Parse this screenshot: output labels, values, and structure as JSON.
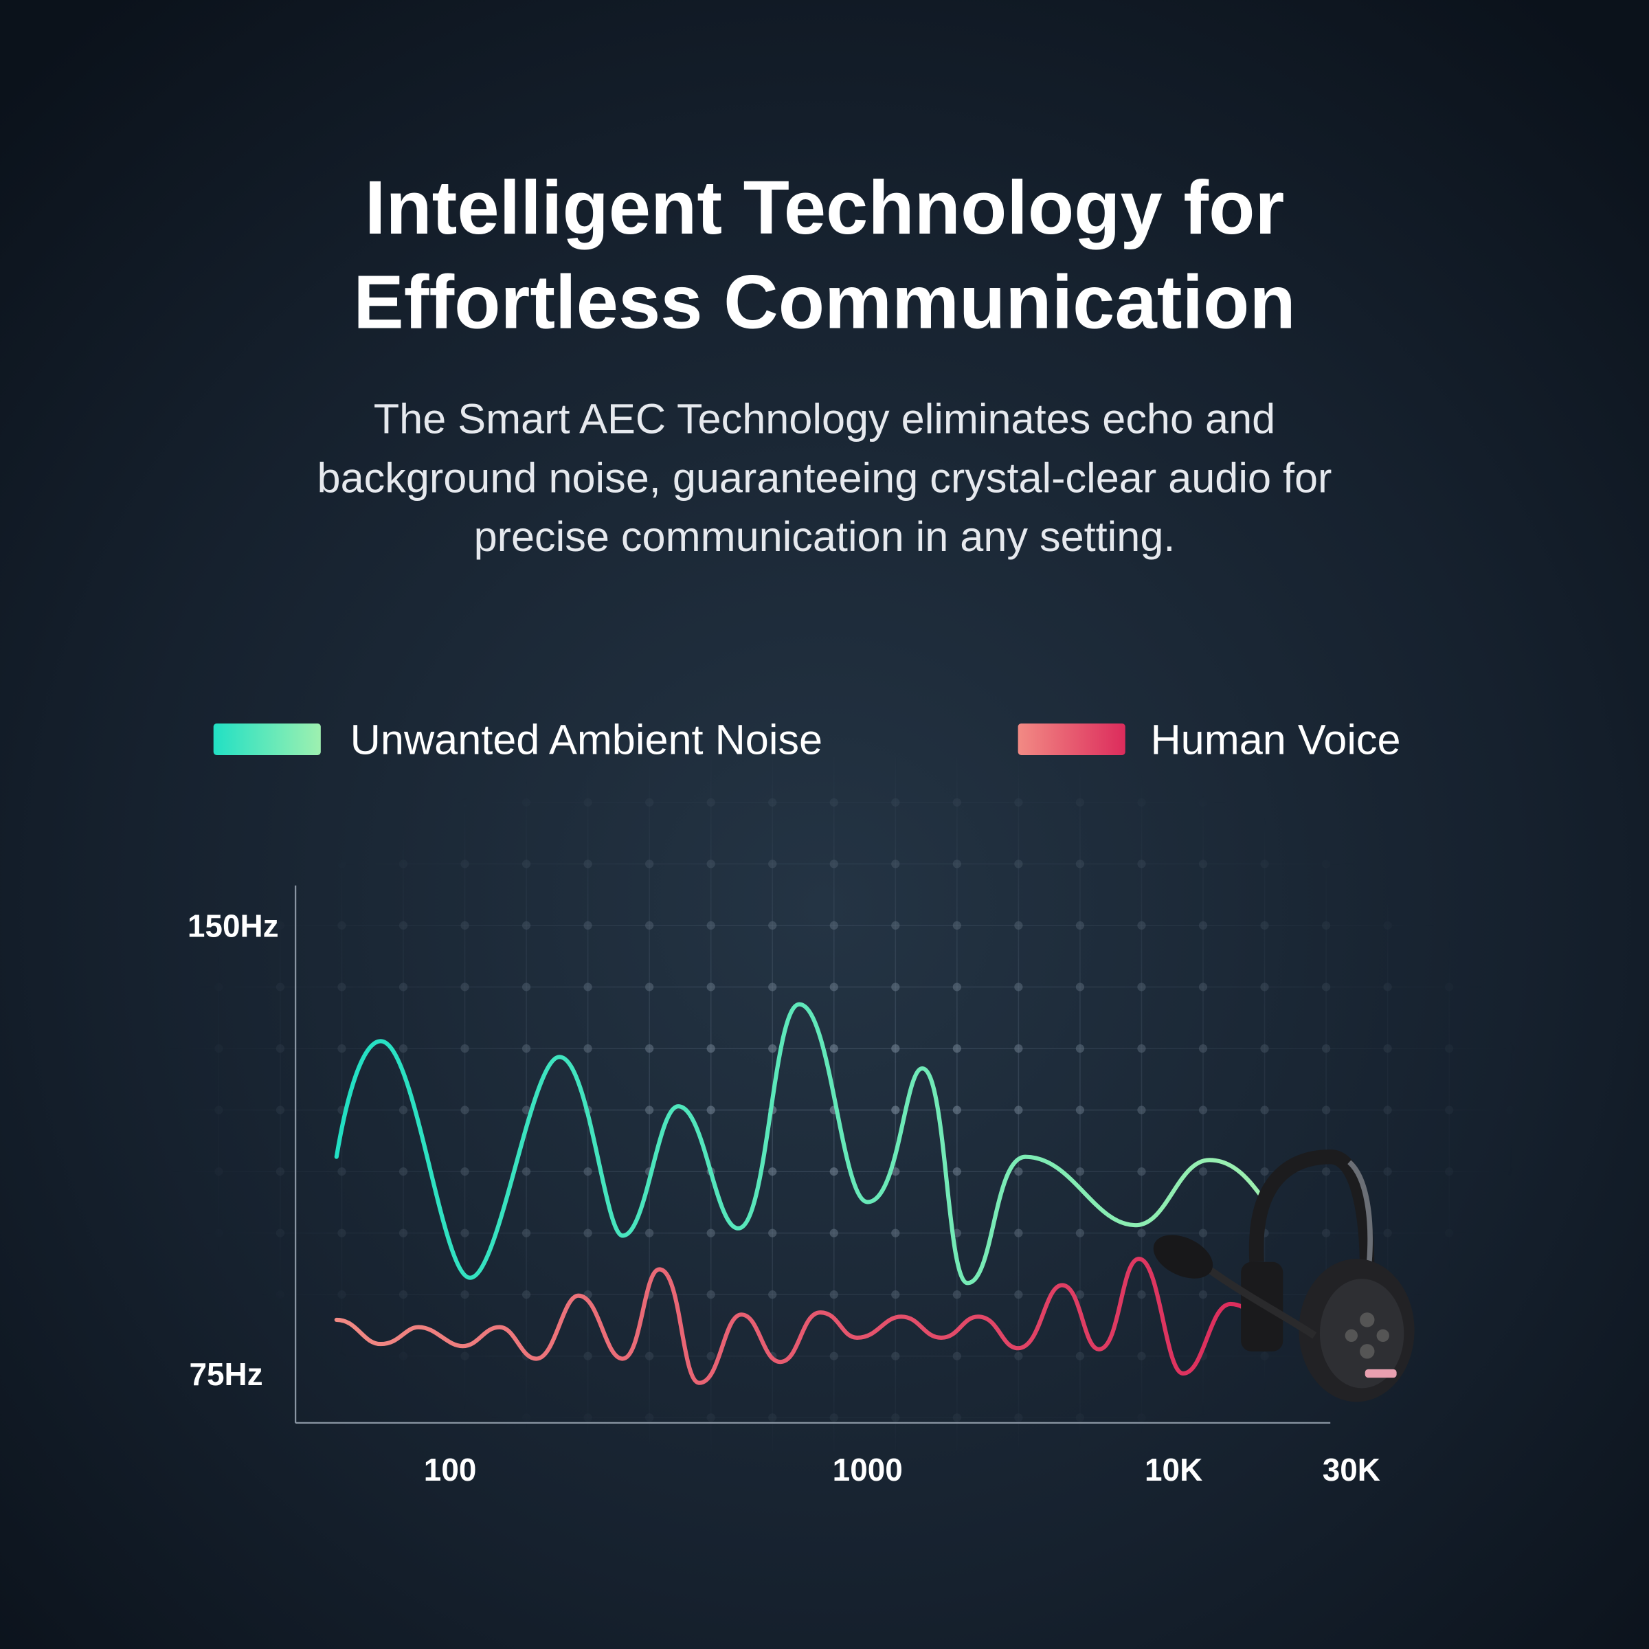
{
  "header": {
    "title": [
      "Intelligent Technology for",
      "Effortless Communication"
    ],
    "subtitle": [
      "The Smart AEC Technology eliminates echo and",
      "background noise, guaranteeing crystal-clear audio for",
      "precise communication in any setting."
    ]
  },
  "legend": [
    {
      "label": "Unwanted Ambient Noise"
    },
    {
      "label": "Human Voice"
    }
  ],
  "axes": {
    "y_labels": [
      "150Hz",
      "75Hz"
    ],
    "x_labels": [
      "100",
      "1000",
      "10K",
      "30K"
    ]
  }
}
